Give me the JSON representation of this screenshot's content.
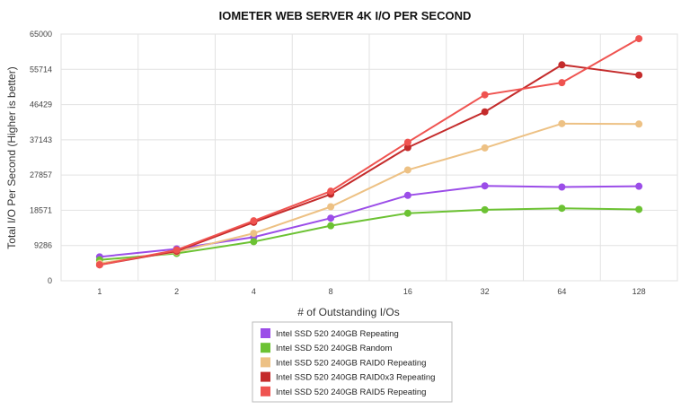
{
  "chart_data": {
    "type": "line",
    "title": "IOMETER WEB SERVER 4K I/O PER SECOND",
    "xlabel": "# of Outstanding I/Os",
    "ylabel": "Total I/O Per Second (Higher is better)",
    "categories": [
      "1",
      "2",
      "4",
      "8",
      "16",
      "32",
      "64",
      "128"
    ],
    "yticks": [
      "0",
      "9286",
      "18571",
      "27857",
      "37143",
      "46429",
      "55714",
      "65000"
    ],
    "ylim": [
      0,
      65000
    ],
    "grid": true,
    "legend_position": "bottom",
    "series": [
      {
        "name": "Intel SSD 520 240GB Repeating",
        "color": "#9b4de8",
        "values": [
          6300,
          8400,
          11500,
          16500,
          22500,
          25000,
          24700,
          24900
        ]
      },
      {
        "name": "Intel SSD 520 240GB Random",
        "color": "#6cc233",
        "values": [
          5500,
          7200,
          10300,
          14500,
          17800,
          18700,
          19100,
          18800
        ]
      },
      {
        "name": "Intel SSD 520 240GB RAID0 Repeating",
        "color": "#edc184",
        "values": [
          4600,
          7600,
          12500,
          19500,
          29200,
          35000,
          41400,
          41300
        ]
      },
      {
        "name": "Intel SSD 520 240GB RAID0x3 Repeating",
        "color": "#c42b2b",
        "values": [
          4200,
          7800,
          15400,
          22800,
          35100,
          44500,
          56900,
          54200
        ]
      },
      {
        "name": "Intel SSD 520 240GB RAID5 Repeating",
        "color": "#ef5350",
        "values": [
          4200,
          8100,
          15800,
          23600,
          36500,
          49000,
          52200,
          63800
        ]
      }
    ]
  }
}
